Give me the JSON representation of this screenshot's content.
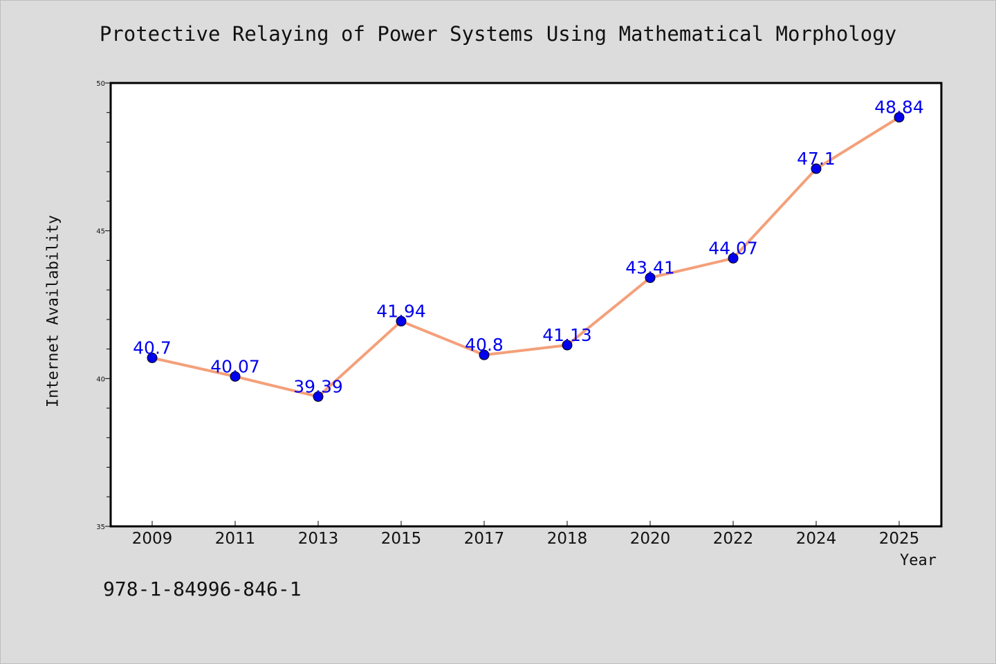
{
  "title": "Protective Relaying of Power Systems Using Mathematical Morphology",
  "footnote": "978-1-84996-846-1",
  "colors": {
    "background": "#dcdcdc",
    "plot_background": "#ffffff",
    "line": "#f4a07a",
    "marker": "#0000ee",
    "data_label": "#0000ee"
  },
  "chart_data": {
    "type": "line",
    "title": "Protective Relaying of Power Systems Using Mathematical Morphology",
    "xlabel": "Year",
    "ylabel": "Internet Availability",
    "categories": [
      "2009",
      "2011",
      "2013",
      "2015",
      "2017",
      "2018",
      "2020",
      "2022",
      "2024",
      "2025"
    ],
    "series": [
      {
        "values": [
          40.7,
          40.07,
          39.39,
          41.94,
          40.8,
          41.13,
          43.41,
          44.07,
          47.1,
          48.84
        ],
        "labels": [
          "40.7",
          "40.07",
          "39.39",
          "41.94",
          "40.8",
          "41.13",
          "43.41",
          "44.07",
          "47.1",
          "48.84"
        ]
      }
    ],
    "ylim": [
      35,
      50
    ],
    "yticks": [
      35,
      40,
      45,
      50
    ],
    "grid": false,
    "legend": "none"
  }
}
